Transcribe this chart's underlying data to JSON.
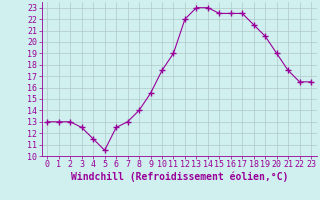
{
  "x": [
    0,
    1,
    2,
    3,
    4,
    5,
    6,
    7,
    8,
    9,
    10,
    11,
    12,
    13,
    14,
    15,
    16,
    17,
    18,
    19,
    20,
    21,
    22,
    23
  ],
  "y": [
    13.0,
    13.0,
    13.0,
    12.5,
    11.5,
    10.5,
    12.5,
    13.0,
    14.0,
    15.5,
    17.5,
    19.0,
    22.0,
    23.0,
    23.0,
    22.5,
    22.5,
    22.5,
    21.5,
    20.5,
    19.0,
    17.5,
    16.5,
    16.5
  ],
  "line_color": "#990099",
  "marker": "+",
  "marker_size": 4,
  "xlabel": "Windchill (Refroidissement éolien,°C)",
  "ylabel": "",
  "title": "",
  "xlim": [
    -0.5,
    23.5
  ],
  "ylim": [
    10,
    23.5
  ],
  "xticks": [
    0,
    1,
    2,
    3,
    4,
    5,
    6,
    7,
    8,
    9,
    10,
    11,
    12,
    13,
    14,
    15,
    16,
    17,
    18,
    19,
    20,
    21,
    22,
    23
  ],
  "yticks": [
    10,
    11,
    12,
    13,
    14,
    15,
    16,
    17,
    18,
    19,
    20,
    21,
    22,
    23
  ],
  "bg_color": "#cff0ee",
  "grid_color": "#b0c8c8",
  "font_color": "#990099",
  "font_size": 6,
  "xlabel_font_size": 7
}
